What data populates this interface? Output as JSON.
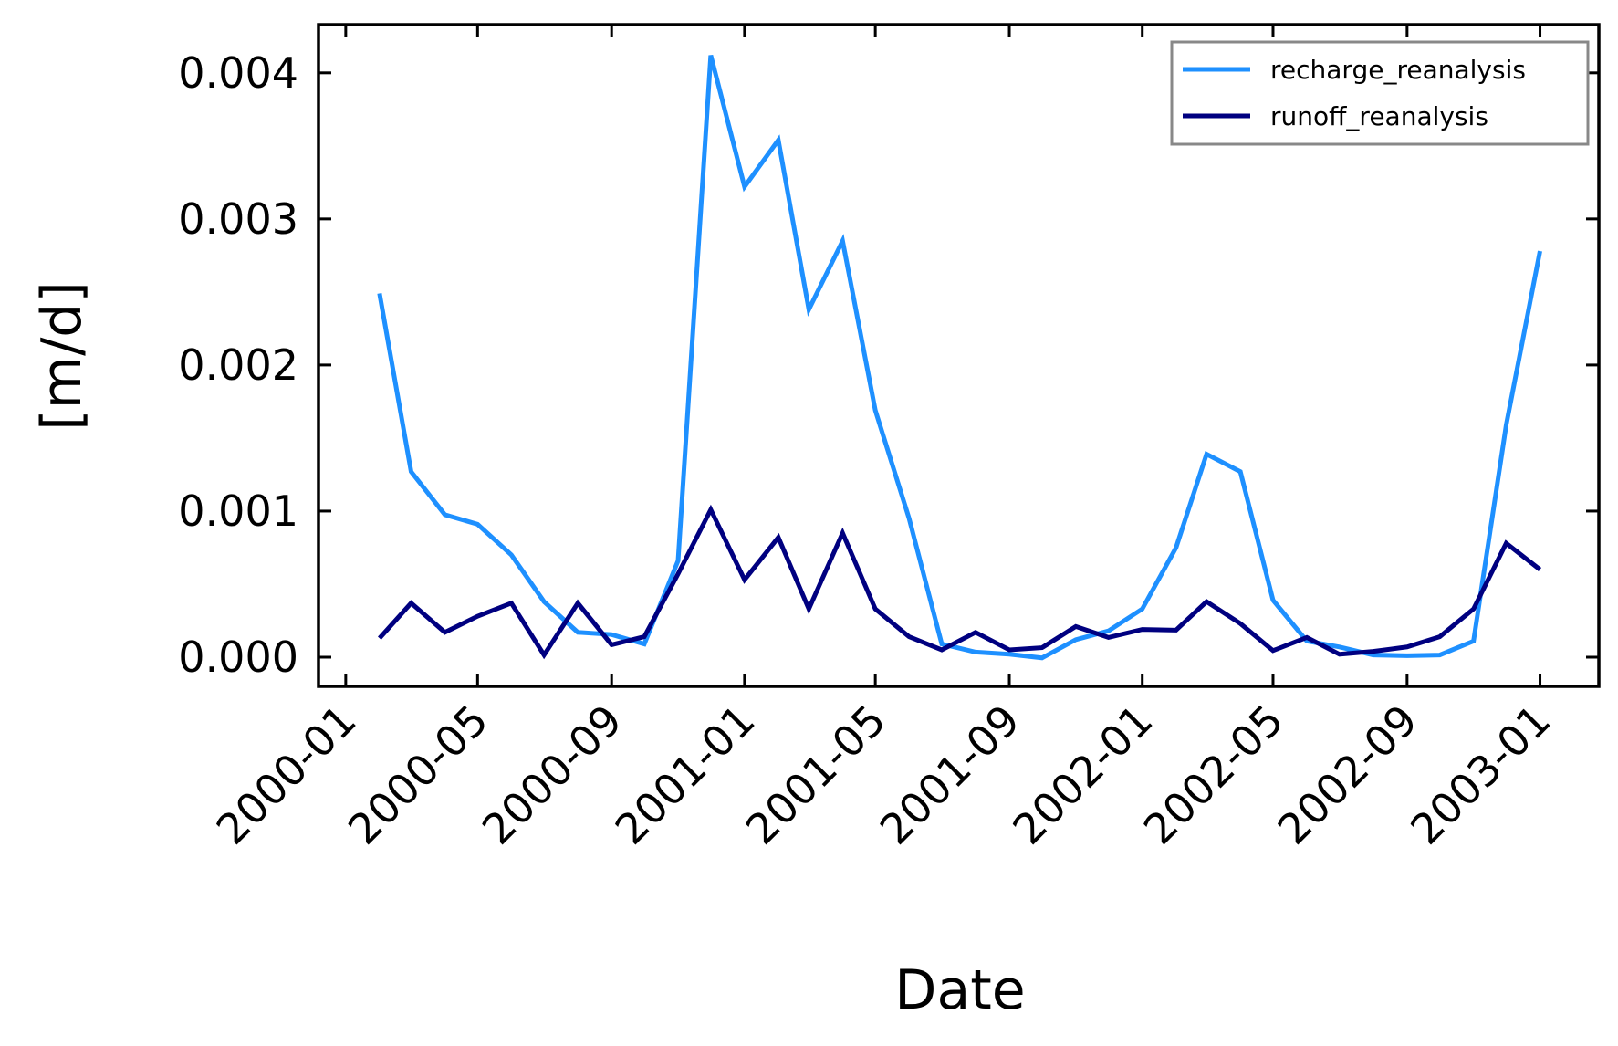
{
  "chart_data": {
    "type": "line",
    "x_label": "Date",
    "y_label": "[m/d]",
    "x": [
      "2000-02",
      "2000-03",
      "2000-04",
      "2000-05",
      "2000-06",
      "2000-07",
      "2000-08",
      "2000-09",
      "2000-10",
      "2000-11",
      "2000-12",
      "2001-01",
      "2001-02",
      "2001-03",
      "2001-04",
      "2001-05",
      "2001-06",
      "2001-07",
      "2001-08",
      "2001-09",
      "2001-10",
      "2001-11",
      "2001-12",
      "2002-01",
      "2002-02",
      "2002-03",
      "2002-04",
      "2002-05",
      "2002-06",
      "2002-07",
      "2002-08",
      "2002-09",
      "2002-10",
      "2002-11",
      "2002-12",
      "2003-01"
    ],
    "series": [
      {
        "name": "recharge_reanalysis",
        "color": "#1e90ff",
        "values": [
          0.00249,
          0.00127,
          0.000975,
          0.00091,
          0.0007,
          0.00038,
          0.00017,
          0.000155,
          9e-05,
          0.00066,
          0.00412,
          0.00322,
          0.00354,
          0.00238,
          0.00285,
          0.00169,
          0.00095,
          9e-05,
          3.5e-05,
          2e-05,
          -5e-06,
          0.00012,
          0.00018,
          0.00033,
          0.00075,
          0.00139,
          0.00127,
          0.00039,
          0.00011,
          7e-05,
          1.5e-05,
          1e-05,
          1.5e-05,
          0.00011,
          0.00159,
          0.00278
        ]
      },
      {
        "name": "runoff_reanalysis",
        "color": "#000080",
        "values": [
          0.00013,
          0.00037,
          0.00017,
          0.00028,
          0.00037,
          1.5e-05,
          0.00037,
          8.5e-05,
          0.00014,
          0.00057,
          0.00101,
          0.00053,
          0.00082,
          0.00033,
          0.00085,
          0.00033,
          0.00014,
          5e-05,
          0.00017,
          5e-05,
          6.5e-05,
          0.00021,
          0.000135,
          0.00019,
          0.000185,
          0.00038,
          0.00023,
          4.5e-05,
          0.000135,
          2e-05,
          4e-05,
          7e-05,
          0.00014,
          0.00033,
          0.00078,
          0.0006
        ]
      }
    ],
    "xlim": [
      "1999-12-07",
      "2003-02-24"
    ],
    "xticks": [
      "2000-01",
      "2000-05",
      "2000-09",
      "2001-01",
      "2001-05",
      "2001-09",
      "2002-01",
      "2002-05",
      "2002-09",
      "2003-01"
    ],
    "ylim": [
      -0.0002,
      0.00433
    ],
    "yticks": [
      {
        "value": 0,
        "label": "0.000"
      },
      0.001,
      0.002,
      0.003,
      0.004
    ],
    "legend": "upper right"
  }
}
